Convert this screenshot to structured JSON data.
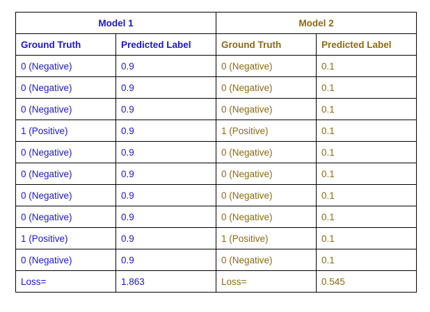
{
  "colors": {
    "model1": "#1c17c8",
    "model2": "#8a6a14",
    "border": "#000000"
  },
  "models": [
    {
      "name": "Model 1",
      "headers": [
        "Ground Truth",
        "Predicted Label"
      ],
      "rows": [
        [
          "0 (Negative)",
          "0.9"
        ],
        [
          "0 (Negative)",
          "0.9"
        ],
        [
          "0 (Negative)",
          "0.9"
        ],
        [
          "1 (Positive)",
          "0.9"
        ],
        [
          "0 (Negative)",
          "0.9"
        ],
        [
          "0 (Negative)",
          "0.9"
        ],
        [
          "0 (Negative)",
          "0.9"
        ],
        [
          "0 (Negative)",
          "0.9"
        ],
        [
          "1 (Positive)",
          "0.9"
        ],
        [
          "0 (Negative)",
          "0.9"
        ]
      ],
      "loss_label": "Loss=",
      "loss_value": "1.863"
    },
    {
      "name": "Model 2",
      "headers": [
        "Ground Truth",
        "Predicted Label"
      ],
      "rows": [
        [
          "0 (Negative)",
          "0.1"
        ],
        [
          "0 (Negative)",
          "0.1"
        ],
        [
          "0 (Negative)",
          "0.1"
        ],
        [
          "1 (Positive)",
          "0.1"
        ],
        [
          "0 (Negative)",
          "0.1"
        ],
        [
          "0 (Negative)",
          "0.1"
        ],
        [
          "0 (Negative)",
          "0.1"
        ],
        [
          "0 (Negative)",
          "0.1"
        ],
        [
          "1 (Positive)",
          "0.1"
        ],
        [
          "0 (Negative)",
          "0.1"
        ]
      ],
      "loss_label": "Loss=",
      "loss_value": "0.545"
    }
  ]
}
